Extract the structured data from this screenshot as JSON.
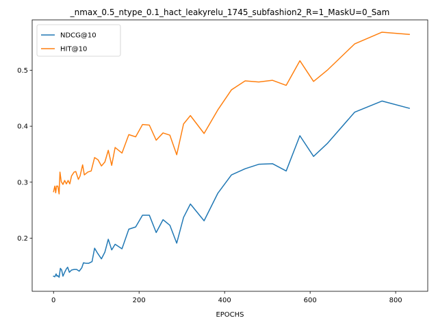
{
  "chart_data": {
    "type": "line",
    "title": "_nmax_0.5_ntype_0.1_hact_leakyrelu_1745_subfashion2_R=1_MaskU=0_Sam",
    "xlabel": "EPOCHS",
    "ylabel": "",
    "xlim": [
      -50,
      875
    ],
    "ylim": [
      0.105,
      0.59
    ],
    "xticks": [
      0,
      200,
      400,
      600,
      800
    ],
    "yticks": [
      0.2,
      0.3,
      0.4,
      0.5
    ],
    "grid": false,
    "legend_position": "top-left",
    "series": [
      {
        "name": "NDCG@10",
        "color": "#1f77b4",
        "points": [
          [
            0,
            0.132
          ],
          [
            3,
            0.131
          ],
          [
            6,
            0.136
          ],
          [
            8,
            0.132
          ],
          [
            10,
            0.133
          ],
          [
            13,
            0.13
          ],
          [
            16,
            0.146
          ],
          [
            19,
            0.143
          ],
          [
            22,
            0.132
          ],
          [
            26,
            0.139
          ],
          [
            30,
            0.145
          ],
          [
            33,
            0.148
          ],
          [
            37,
            0.139
          ],
          [
            42,
            0.143
          ],
          [
            48,
            0.144
          ],
          [
            54,
            0.144
          ],
          [
            60,
            0.141
          ],
          [
            66,
            0.147
          ],
          [
            70,
            0.156
          ],
          [
            76,
            0.155
          ],
          [
            82,
            0.155
          ],
          [
            90,
            0.158
          ],
          [
            96,
            0.182
          ],
          [
            103,
            0.173
          ],
          [
            112,
            0.163
          ],
          [
            120,
            0.175
          ],
          [
            128,
            0.198
          ],
          [
            136,
            0.179
          ],
          [
            144,
            0.189
          ],
          [
            160,
            0.181
          ],
          [
            176,
            0.216
          ],
          [
            192,
            0.22
          ],
          [
            208,
            0.241
          ],
          [
            224,
            0.241
          ],
          [
            240,
            0.21
          ],
          [
            256,
            0.233
          ],
          [
            272,
            0.223
          ],
          [
            288,
            0.191
          ],
          [
            304,
            0.237
          ],
          [
            320,
            0.261
          ],
          [
            352,
            0.231
          ],
          [
            384,
            0.28
          ],
          [
            416,
            0.313
          ],
          [
            448,
            0.324
          ],
          [
            480,
            0.332
          ],
          [
            512,
            0.333
          ],
          [
            544,
            0.32
          ],
          [
            576,
            0.383
          ],
          [
            608,
            0.346
          ],
          [
            640,
            0.369
          ],
          [
            704,
            0.425
          ],
          [
            768,
            0.445
          ],
          [
            832,
            0.432
          ]
        ]
      },
      {
        "name": "HIT@10",
        "color": "#ff7f0e",
        "points": [
          [
            0,
            0.283
          ],
          [
            3,
            0.293
          ],
          [
            5,
            0.281
          ],
          [
            7,
            0.293
          ],
          [
            10,
            0.293
          ],
          [
            13,
            0.279
          ],
          [
            15,
            0.318
          ],
          [
            18,
            0.301
          ],
          [
            22,
            0.296
          ],
          [
            26,
            0.303
          ],
          [
            30,
            0.297
          ],
          [
            34,
            0.303
          ],
          [
            38,
            0.297
          ],
          [
            42,
            0.311
          ],
          [
            48,
            0.318
          ],
          [
            52,
            0.319
          ],
          [
            58,
            0.305
          ],
          [
            62,
            0.311
          ],
          [
            68,
            0.331
          ],
          [
            72,
            0.313
          ],
          [
            80,
            0.318
          ],
          [
            88,
            0.32
          ],
          [
            96,
            0.344
          ],
          [
            104,
            0.34
          ],
          [
            112,
            0.329
          ],
          [
            120,
            0.336
          ],
          [
            128,
            0.357
          ],
          [
            136,
            0.33
          ],
          [
            144,
            0.362
          ],
          [
            160,
            0.352
          ],
          [
            176,
            0.385
          ],
          [
            192,
            0.381
          ],
          [
            208,
            0.403
          ],
          [
            224,
            0.402
          ],
          [
            240,
            0.375
          ],
          [
            256,
            0.388
          ],
          [
            272,
            0.384
          ],
          [
            288,
            0.349
          ],
          [
            304,
            0.404
          ],
          [
            320,
            0.419
          ],
          [
            352,
            0.387
          ],
          [
            384,
            0.429
          ],
          [
            416,
            0.465
          ],
          [
            448,
            0.481
          ],
          [
            480,
            0.479
          ],
          [
            512,
            0.482
          ],
          [
            544,
            0.473
          ],
          [
            576,
            0.517
          ],
          [
            608,
            0.48
          ],
          [
            640,
            0.5
          ],
          [
            704,
            0.547
          ],
          [
            768,
            0.568
          ],
          [
            832,
            0.564
          ]
        ]
      }
    ]
  }
}
